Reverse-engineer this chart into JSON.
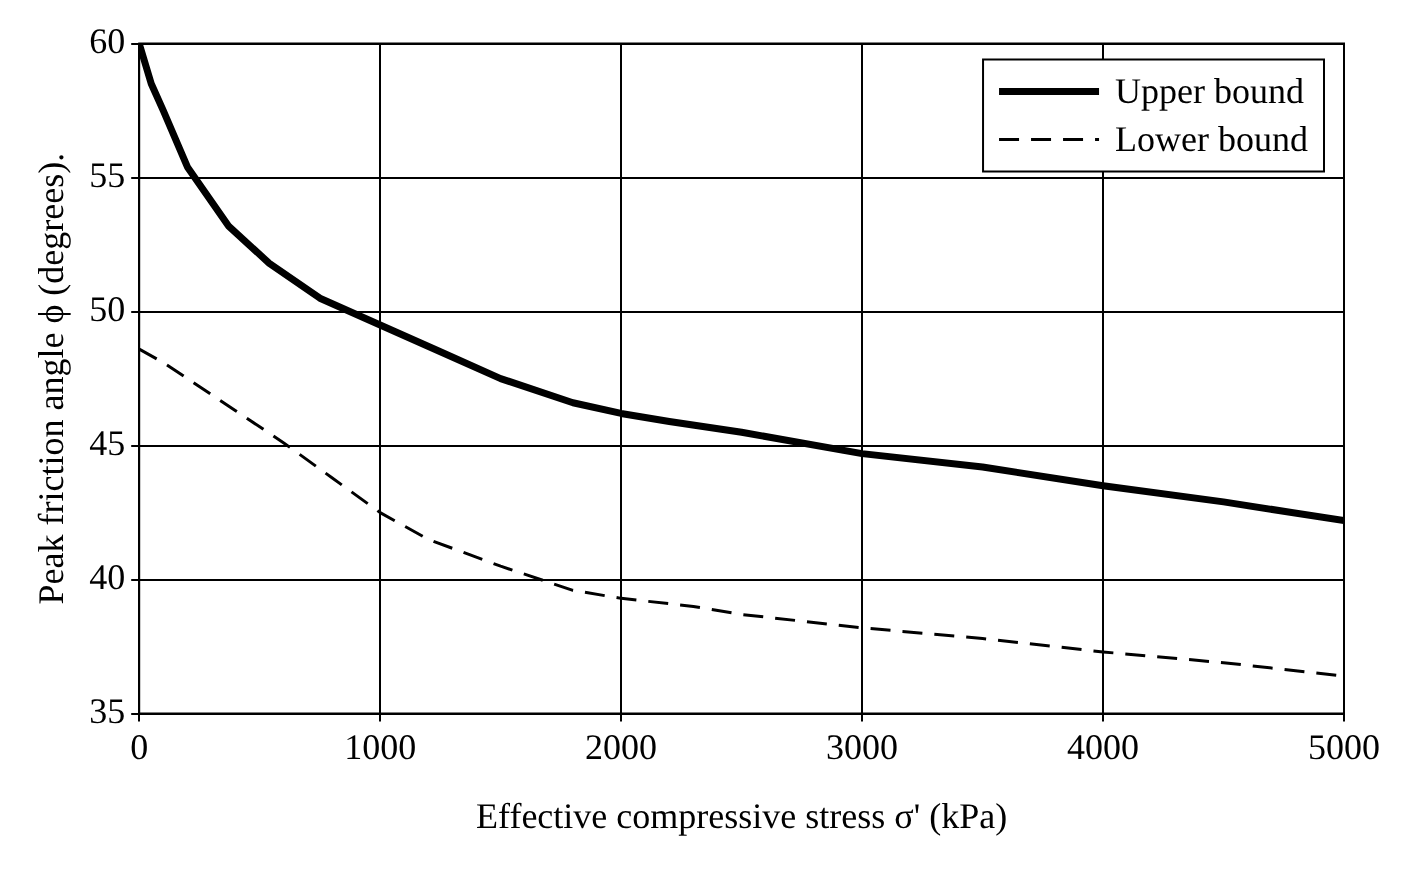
{
  "chart_data": {
    "type": "line",
    "xlabel": "Effective compressive stress σ' (kPa)",
    "ylabel": "Peak friction angle ϕ (degrees).",
    "xlim": [
      0,
      5000
    ],
    "ylim": [
      35,
      60
    ],
    "xticks": [
      0,
      1000,
      2000,
      3000,
      4000,
      5000
    ],
    "yticks": [
      35,
      40,
      45,
      50,
      55,
      60
    ],
    "grid": true,
    "legend": "top right",
    "marker": "none",
    "series": [
      {
        "name": "Upper bound",
        "color": "#000000",
        "line_style": "solid",
        "x": [
          0,
          50,
          100,
          200,
          370,
          540,
          750,
          1000,
          1250,
          1500,
          1800,
          2000,
          2200,
          2500,
          3000,
          3500,
          4000,
          4500,
          5000
        ],
        "values": [
          60,
          58.5,
          57.5,
          55.4,
          53.2,
          51.8,
          50.5,
          49.5,
          48.5,
          47.5,
          46.6,
          46.2,
          45.9,
          45.5,
          44.7,
          44.2,
          43.5,
          42.9,
          42.2
        ]
      },
      {
        "name": "Lower bound",
        "color": "#000000",
        "line_style": "dashed",
        "x": [
          0,
          100,
          200,
          400,
          600,
          800,
          1000,
          1200,
          1500,
          1800,
          2000,
          2300,
          2500,
          3000,
          3500,
          4000,
          4500,
          5000
        ],
        "values": [
          48.6,
          48.1,
          47.5,
          46.3,
          45.1,
          43.8,
          42.5,
          41.5,
          40.5,
          39.6,
          39.3,
          39,
          38.7,
          38.2,
          37.8,
          37.3,
          36.9,
          36.4
        ]
      }
    ]
  }
}
